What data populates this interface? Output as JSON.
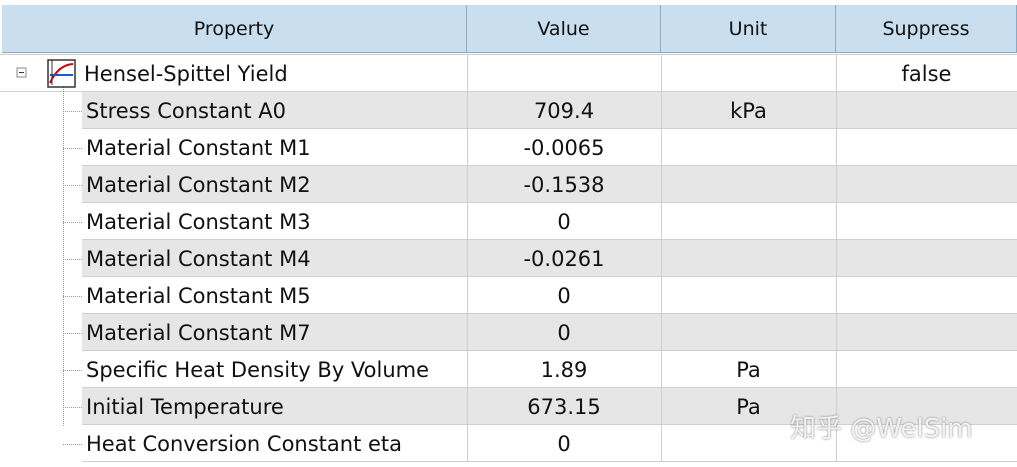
{
  "table": {
    "header": [
      "Property",
      "Value",
      "Unit",
      "Suppress"
    ],
    "parent": {
      "property": "Hensel-Spittel Yield",
      "suppress": "false"
    },
    "rows": [
      {
        "property": "Stress Constant A0",
        "value": "709.4",
        "unit": "kPa"
      },
      {
        "property": "Material Constant M1",
        "value": "-0.0065"
      },
      {
        "property": "Material Constant M2",
        "value": "-0.1538"
      },
      {
        "property": "Material Constant M3",
        "value": "0"
      },
      {
        "property": "Material Constant M4",
        "value": "-0.0261"
      },
      {
        "property": "Material Constant M5",
        "value": "0"
      },
      {
        "property": "Material Constant M7",
        "value": "0"
      },
      {
        "property": "Specific Heat Density By Volume",
        "value": "1.89",
        "unit": "Pa"
      },
      {
        "property": "Initial Temperature",
        "value": "673.15",
        "unit": "Pa"
      },
      {
        "property": "Heat Conversion Constant eta",
        "value": "0"
      }
    ]
  },
  "watermark": "知乎 @WelSim"
}
